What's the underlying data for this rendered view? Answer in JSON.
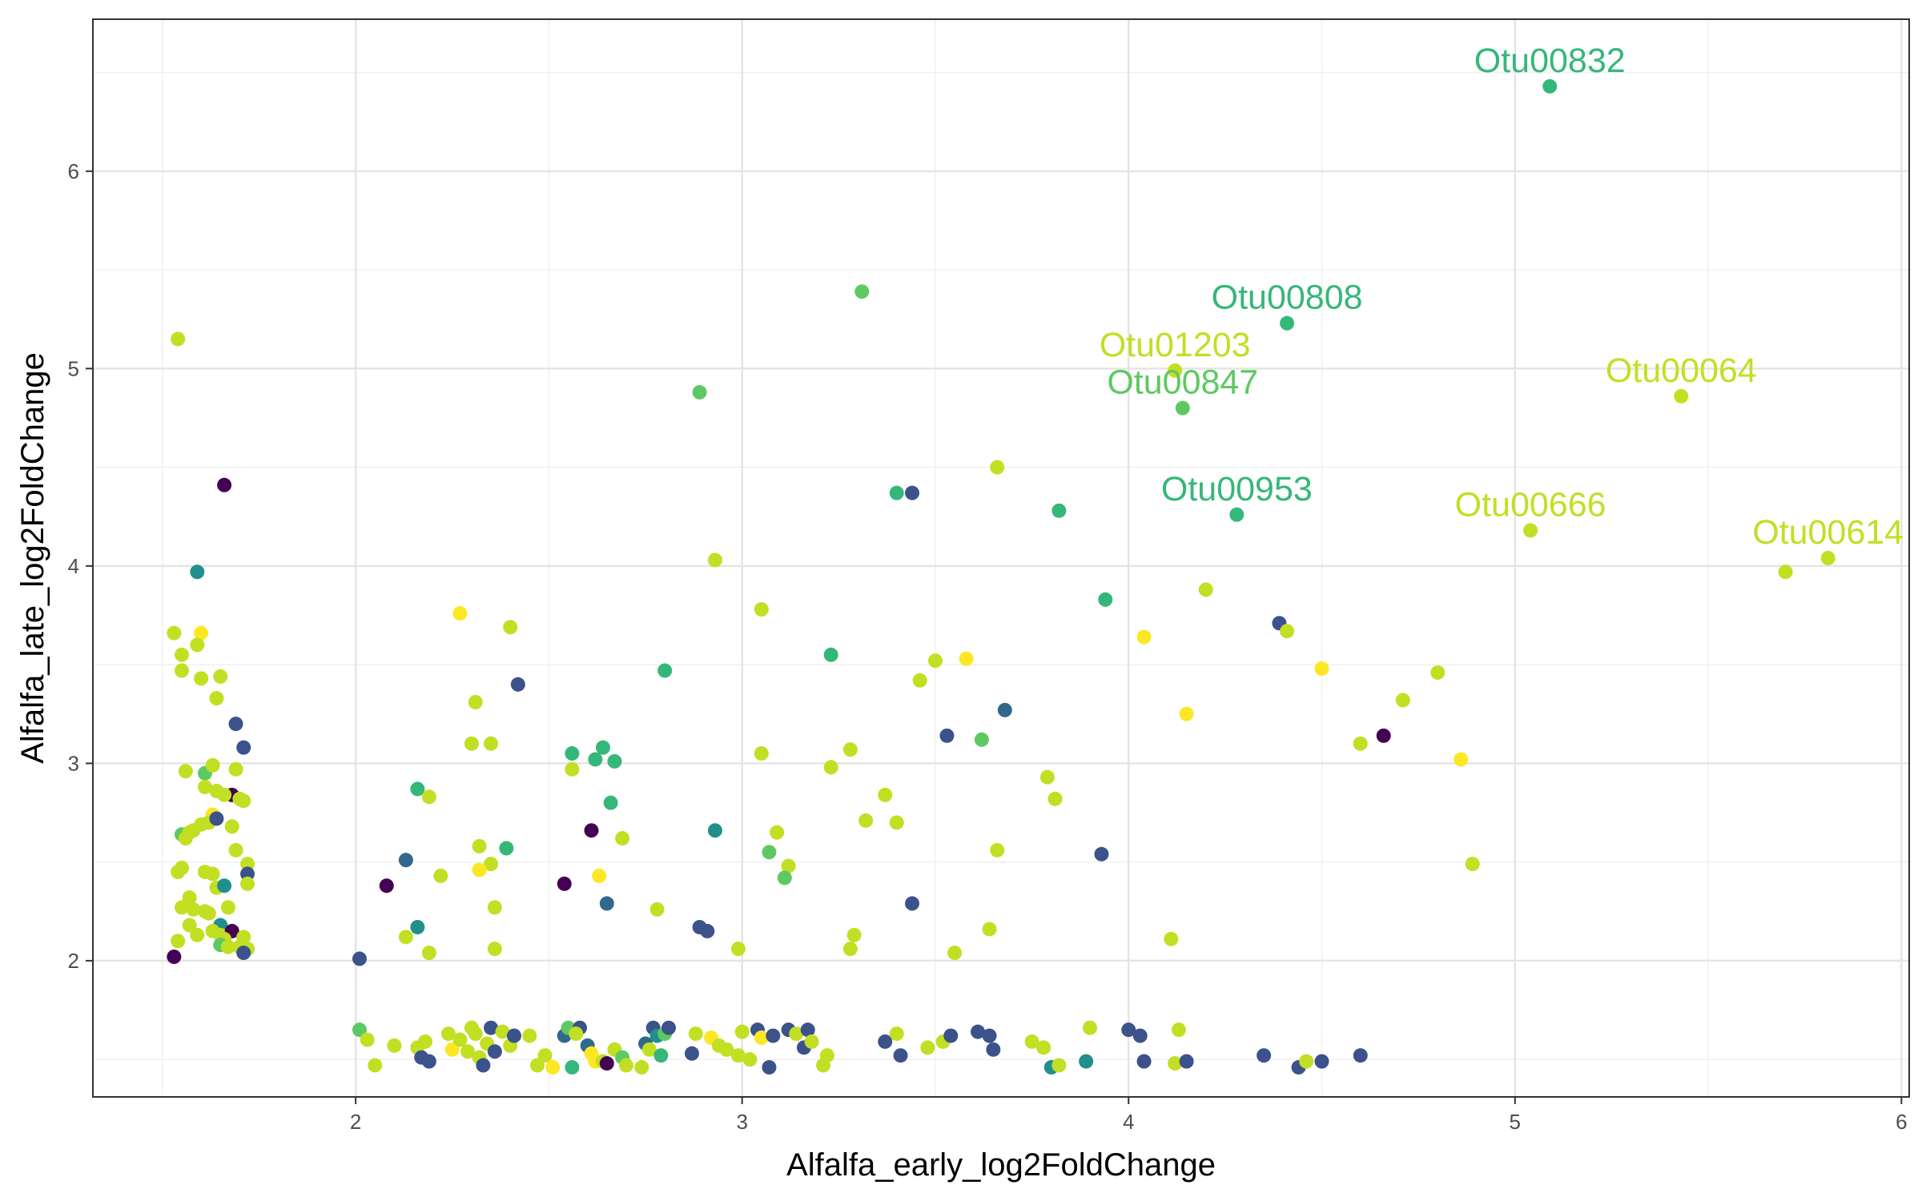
{
  "chart_data": {
    "type": "scatter",
    "xlabel": "Alfalfa_early_log2FoldChange",
    "ylabel": "Alfalfa_late_log2FoldChange",
    "xlim": [
      1.32,
      6.02
    ],
    "ylim": [
      1.31,
      6.77
    ],
    "x_ticks": [
      2,
      3,
      4,
      5,
      6
    ],
    "y_ticks": [
      2,
      3,
      4,
      5,
      6
    ],
    "x_tick_labels": [
      "2",
      "3",
      "4",
      "5",
      "6"
    ],
    "y_tick_labels": [
      "2",
      "3",
      "4",
      "5",
      "6"
    ],
    "grid": true,
    "legend": "none",
    "theme": "bw",
    "palette": {
      "a": "#440154",
      "b": "#3b528b",
      "c": "#31688e",
      "d": "#21908c",
      "e": "#35b779",
      "f": "#5ec962",
      "g": "#a0da39",
      "h": "#c2df23",
      "i": "#fde725"
    },
    "labels": [
      {
        "text": "Otu00832",
        "x": 5.09,
        "y": 6.43,
        "color": "e"
      },
      {
        "text": "Otu00808",
        "x": 4.41,
        "y": 5.23,
        "color": "e"
      },
      {
        "text": "Otu01203",
        "x": 4.12,
        "y": 4.99,
        "color": "h"
      },
      {
        "text": "Otu00847",
        "x": 4.14,
        "y": 4.8,
        "color": "f"
      },
      {
        "text": "Otu00064",
        "x": 5.43,
        "y": 4.86,
        "color": "h"
      },
      {
        "text": "Otu00953",
        "x": 4.28,
        "y": 4.26,
        "color": "e"
      },
      {
        "text": "Otu00666",
        "x": 5.04,
        "y": 4.18,
        "color": "h"
      },
      {
        "text": "Otu00614",
        "x": 5.81,
        "y": 4.04,
        "color": "h"
      }
    ],
    "points": [
      [
        5.09,
        6.43,
        "e"
      ],
      [
        4.41,
        5.23,
        "e"
      ],
      [
        4.12,
        4.99,
        "h"
      ],
      [
        4.14,
        4.8,
        "f"
      ],
      [
        5.43,
        4.86,
        "h"
      ],
      [
        4.28,
        4.26,
        "e"
      ],
      [
        5.04,
        4.18,
        "h"
      ],
      [
        5.81,
        4.04,
        "h"
      ],
      [
        5.7,
        3.97,
        "h"
      ],
      [
        3.31,
        5.39,
        "f"
      ],
      [
        2.89,
        4.88,
        "f"
      ],
      [
        3.66,
        4.5,
        "h"
      ],
      [
        3.4,
        4.37,
        "e"
      ],
      [
        3.44,
        4.37,
        "b"
      ],
      [
        3.82,
        4.28,
        "e"
      ],
      [
        2.93,
        4.03,
        "h"
      ],
      [
        3.94,
        3.83,
        "e"
      ],
      [
        4.2,
        3.88,
        "h"
      ],
      [
        4.39,
        3.71,
        "b"
      ],
      [
        4.41,
        3.67,
        "h"
      ],
      [
        4.04,
        3.64,
        "i"
      ],
      [
        3.05,
        3.78,
        "h"
      ],
      [
        2.8,
        3.47,
        "e"
      ],
      [
        3.23,
        3.55,
        "e"
      ],
      [
        3.5,
        3.52,
        "h"
      ],
      [
        3.58,
        3.53,
        "i"
      ],
      [
        3.46,
        3.42,
        "h"
      ],
      [
        3.68,
        3.27,
        "c"
      ],
      [
        4.15,
        3.25,
        "i"
      ],
      [
        4.5,
        3.48,
        "i"
      ],
      [
        4.8,
        3.46,
        "h"
      ],
      [
        4.71,
        3.32,
        "h"
      ],
      [
        4.66,
        3.14,
        "a"
      ],
      [
        4.6,
        3.1,
        "h"
      ],
      [
        4.86,
        3.02,
        "i"
      ],
      [
        4.89,
        2.49,
        "h"
      ],
      [
        3.53,
        3.14,
        "b"
      ],
      [
        3.62,
        3.12,
        "f"
      ],
      [
        3.28,
        3.07,
        "h"
      ],
      [
        3.23,
        2.98,
        "h"
      ],
      [
        3.05,
        3.05,
        "h"
      ],
      [
        3.79,
        2.93,
        "h"
      ],
      [
        3.81,
        2.82,
        "h"
      ],
      [
        3.37,
        2.84,
        "h"
      ],
      [
        3.32,
        2.71,
        "h"
      ],
      [
        3.4,
        2.7,
        "h"
      ],
      [
        2.93,
        2.66,
        "d"
      ],
      [
        3.09,
        2.65,
        "h"
      ],
      [
        3.66,
        2.56,
        "h"
      ],
      [
        3.93,
        2.54,
        "b"
      ],
      [
        3.07,
        2.55,
        "f"
      ],
      [
        3.12,
        2.48,
        "h"
      ],
      [
        3.11,
        2.42,
        "f"
      ],
      [
        3.44,
        2.29,
        "b"
      ],
      [
        3.64,
        2.16,
        "h"
      ],
      [
        3.29,
        2.13,
        "h"
      ],
      [
        3.28,
        2.06,
        "h"
      ],
      [
        2.99,
        2.06,
        "h"
      ],
      [
        2.89,
        2.17,
        "b"
      ],
      [
        2.91,
        2.15,
        "b"
      ],
      [
        2.78,
        2.26,
        "h"
      ],
      [
        3.55,
        2.04,
        "h"
      ],
      [
        4.11,
        2.11,
        "h"
      ],
      [
        2.27,
        3.76,
        "i"
      ],
      [
        2.4,
        3.69,
        "h"
      ],
      [
        2.42,
        3.4,
        "b"
      ],
      [
        2.31,
        3.31,
        "h"
      ],
      [
        2.3,
        3.1,
        "h"
      ],
      [
        2.35,
        3.1,
        "h"
      ],
      [
        2.56,
        3.05,
        "e"
      ],
      [
        2.62,
        3.02,
        "e"
      ],
      [
        2.64,
        3.08,
        "e"
      ],
      [
        2.67,
        3.01,
        "e"
      ],
      [
        2.56,
        2.97,
        "h"
      ],
      [
        2.66,
        2.8,
        "e"
      ],
      [
        2.16,
        2.87,
        "e"
      ],
      [
        2.19,
        2.83,
        "h"
      ],
      [
        2.61,
        2.66,
        "a"
      ],
      [
        2.69,
        2.62,
        "h"
      ],
      [
        2.32,
        2.58,
        "h"
      ],
      [
        2.39,
        2.57,
        "e"
      ],
      [
        2.13,
        2.51,
        "c"
      ],
      [
        2.35,
        2.49,
        "h"
      ],
      [
        2.32,
        2.46,
        "i"
      ],
      [
        2.22,
        2.43,
        "h"
      ],
      [
        2.63,
        2.43,
        "i"
      ],
      [
        2.08,
        2.38,
        "a"
      ],
      [
        2.54,
        2.39,
        "a"
      ],
      [
        2.65,
        2.29,
        "c"
      ],
      [
        2.36,
        2.27,
        "h"
      ],
      [
        2.16,
        2.17,
        "d"
      ],
      [
        2.13,
        2.12,
        "h"
      ],
      [
        2.19,
        2.04,
        "h"
      ],
      [
        2.36,
        2.06,
        "h"
      ],
      [
        2.01,
        2.01,
        "b"
      ],
      [
        1.54,
        5.15,
        "h"
      ],
      [
        1.66,
        4.41,
        "a"
      ],
      [
        1.59,
        3.97,
        "d"
      ],
      [
        1.53,
        3.66,
        "h"
      ],
      [
        1.6,
        3.66,
        "i"
      ],
      [
        1.59,
        3.6,
        "h"
      ],
      [
        1.55,
        3.55,
        "h"
      ],
      [
        1.55,
        3.47,
        "h"
      ],
      [
        1.6,
        3.43,
        "h"
      ],
      [
        1.65,
        3.44,
        "h"
      ],
      [
        1.64,
        3.33,
        "h"
      ],
      [
        1.69,
        3.2,
        "b"
      ],
      [
        1.71,
        3.08,
        "b"
      ],
      [
        1.56,
        2.96,
        "h"
      ],
      [
        1.61,
        2.95,
        "f"
      ],
      [
        1.63,
        2.99,
        "h"
      ],
      [
        1.69,
        2.97,
        "h"
      ],
      [
        1.61,
        2.88,
        "h"
      ],
      [
        1.64,
        2.86,
        "h"
      ],
      [
        1.68,
        2.84,
        "a"
      ],
      [
        1.66,
        2.84,
        "h"
      ],
      [
        1.7,
        2.82,
        "h"
      ],
      [
        1.71,
        2.81,
        "h"
      ],
      [
        1.63,
        2.74,
        "i"
      ],
      [
        1.62,
        2.7,
        "h"
      ],
      [
        1.64,
        2.72,
        "b"
      ],
      [
        1.6,
        2.69,
        "h"
      ],
      [
        1.68,
        2.68,
        "h"
      ],
      [
        1.55,
        2.64,
        "f"
      ],
      [
        1.57,
        2.65,
        "h"
      ],
      [
        1.56,
        2.62,
        "h"
      ],
      [
        1.58,
        2.66,
        "h"
      ],
      [
        1.69,
        2.56,
        "h"
      ],
      [
        1.72,
        2.49,
        "h"
      ],
      [
        1.54,
        2.45,
        "h"
      ],
      [
        1.55,
        2.47,
        "h"
      ],
      [
        1.61,
        2.45,
        "h"
      ],
      [
        1.63,
        2.44,
        "h"
      ],
      [
        1.72,
        2.44,
        "b"
      ],
      [
        1.64,
        2.37,
        "h"
      ],
      [
        1.66,
        2.38,
        "d"
      ],
      [
        1.72,
        2.39,
        "h"
      ],
      [
        1.57,
        2.32,
        "h"
      ],
      [
        1.55,
        2.27,
        "h"
      ],
      [
        1.58,
        2.26,
        "h"
      ],
      [
        1.61,
        2.25,
        "h"
      ],
      [
        1.67,
        2.27,
        "h"
      ],
      [
        1.62,
        2.24,
        "h"
      ],
      [
        1.65,
        2.18,
        "d"
      ],
      [
        1.57,
        2.18,
        "h"
      ],
      [
        1.59,
        2.13,
        "h"
      ],
      [
        1.63,
        2.15,
        "h"
      ],
      [
        1.65,
        2.13,
        "h"
      ],
      [
        1.68,
        2.15,
        "a"
      ],
      [
        1.66,
        2.11,
        "h"
      ],
      [
        1.71,
        2.12,
        "h"
      ],
      [
        1.54,
        2.1,
        "h"
      ],
      [
        1.65,
        2.08,
        "f"
      ],
      [
        1.67,
        2.07,
        "h"
      ],
      [
        1.7,
        2.07,
        "h"
      ],
      [
        1.72,
        2.06,
        "h"
      ],
      [
        1.71,
        2.04,
        "b"
      ],
      [
        1.53,
        2.02,
        "a"
      ],
      [
        2.01,
        1.65,
        "f"
      ],
      [
        2.03,
        1.6,
        "h"
      ],
      [
        2.05,
        1.47,
        "h"
      ],
      [
        2.1,
        1.57,
        "h"
      ],
      [
        2.16,
        1.56,
        "h"
      ],
      [
        2.17,
        1.51,
        "b"
      ],
      [
        2.18,
        1.59,
        "h"
      ],
      [
        2.19,
        1.49,
        "b"
      ],
      [
        2.24,
        1.63,
        "h"
      ],
      [
        2.25,
        1.55,
        "i"
      ],
      [
        2.27,
        1.6,
        "h"
      ],
      [
        2.29,
        1.54,
        "h"
      ],
      [
        2.3,
        1.66,
        "h"
      ],
      [
        2.31,
        1.63,
        "h"
      ],
      [
        2.32,
        1.51,
        "h"
      ],
      [
        2.33,
        1.47,
        "b"
      ],
      [
        2.34,
        1.58,
        "h"
      ],
      [
        2.35,
        1.66,
        "b"
      ],
      [
        2.36,
        1.54,
        "b"
      ],
      [
        2.38,
        1.64,
        "h"
      ],
      [
        2.4,
        1.57,
        "h"
      ],
      [
        2.41,
        1.62,
        "b"
      ],
      [
        2.45,
        1.62,
        "h"
      ],
      [
        2.47,
        1.47,
        "h"
      ],
      [
        2.49,
        1.52,
        "h"
      ],
      [
        2.51,
        1.46,
        "i"
      ],
      [
        2.54,
        1.62,
        "c"
      ],
      [
        2.55,
        1.66,
        "f"
      ],
      [
        2.56,
        1.46,
        "e"
      ],
      [
        2.58,
        1.66,
        "b"
      ],
      [
        2.57,
        1.63,
        "h"
      ],
      [
        2.6,
        1.57,
        "c"
      ],
      [
        2.61,
        1.53,
        "i"
      ],
      [
        2.62,
        1.49,
        "i"
      ],
      [
        2.64,
        1.49,
        "h"
      ],
      [
        2.65,
        1.48,
        "a"
      ],
      [
        2.67,
        1.55,
        "h"
      ],
      [
        2.69,
        1.51,
        "f"
      ],
      [
        2.7,
        1.47,
        "h"
      ],
      [
        2.74,
        1.46,
        "h"
      ],
      [
        2.75,
        1.58,
        "c"
      ],
      [
        2.76,
        1.55,
        "h"
      ],
      [
        2.77,
        1.66,
        "b"
      ],
      [
        2.78,
        1.62,
        "d"
      ],
      [
        2.79,
        1.52,
        "e"
      ],
      [
        2.8,
        1.63,
        "f"
      ],
      [
        2.81,
        1.66,
        "b"
      ],
      [
        2.87,
        1.53,
        "b"
      ],
      [
        2.88,
        1.63,
        "h"
      ],
      [
        2.92,
        1.61,
        "i"
      ],
      [
        2.94,
        1.57,
        "h"
      ],
      [
        2.96,
        1.55,
        "h"
      ],
      [
        2.99,
        1.52,
        "h"
      ],
      [
        3.0,
        1.64,
        "h"
      ],
      [
        3.02,
        1.5,
        "h"
      ],
      [
        3.04,
        1.65,
        "b"
      ],
      [
        3.05,
        1.61,
        "i"
      ],
      [
        3.07,
        1.46,
        "b"
      ],
      [
        3.08,
        1.62,
        "b"
      ],
      [
        3.12,
        1.65,
        "b"
      ],
      [
        3.14,
        1.63,
        "h"
      ],
      [
        3.16,
        1.56,
        "b"
      ],
      [
        3.17,
        1.65,
        "b"
      ],
      [
        3.18,
        1.59,
        "h"
      ],
      [
        3.21,
        1.47,
        "h"
      ],
      [
        3.22,
        1.52,
        "h"
      ],
      [
        3.37,
        1.59,
        "b"
      ],
      [
        3.4,
        1.63,
        "h"
      ],
      [
        3.41,
        1.52,
        "b"
      ],
      [
        3.48,
        1.56,
        "h"
      ],
      [
        3.52,
        1.59,
        "h"
      ],
      [
        3.54,
        1.62,
        "b"
      ],
      [
        3.61,
        1.64,
        "b"
      ],
      [
        3.64,
        1.62,
        "b"
      ],
      [
        3.65,
        1.55,
        "b"
      ],
      [
        3.75,
        1.59,
        "h"
      ],
      [
        3.78,
        1.56,
        "h"
      ],
      [
        3.8,
        1.46,
        "d"
      ],
      [
        3.82,
        1.47,
        "h"
      ],
      [
        3.89,
        1.49,
        "d"
      ],
      [
        3.9,
        1.66,
        "h"
      ],
      [
        4.0,
        1.65,
        "b"
      ],
      [
        4.04,
        1.49,
        "b"
      ],
      [
        4.03,
        1.62,
        "b"
      ],
      [
        4.12,
        1.48,
        "h"
      ],
      [
        4.13,
        1.65,
        "h"
      ],
      [
        4.15,
        1.49,
        "b"
      ],
      [
        4.35,
        1.52,
        "b"
      ],
      [
        4.44,
        1.46,
        "b"
      ],
      [
        4.46,
        1.49,
        "h"
      ],
      [
        4.5,
        1.49,
        "b"
      ],
      [
        4.6,
        1.52,
        "b"
      ]
    ]
  }
}
